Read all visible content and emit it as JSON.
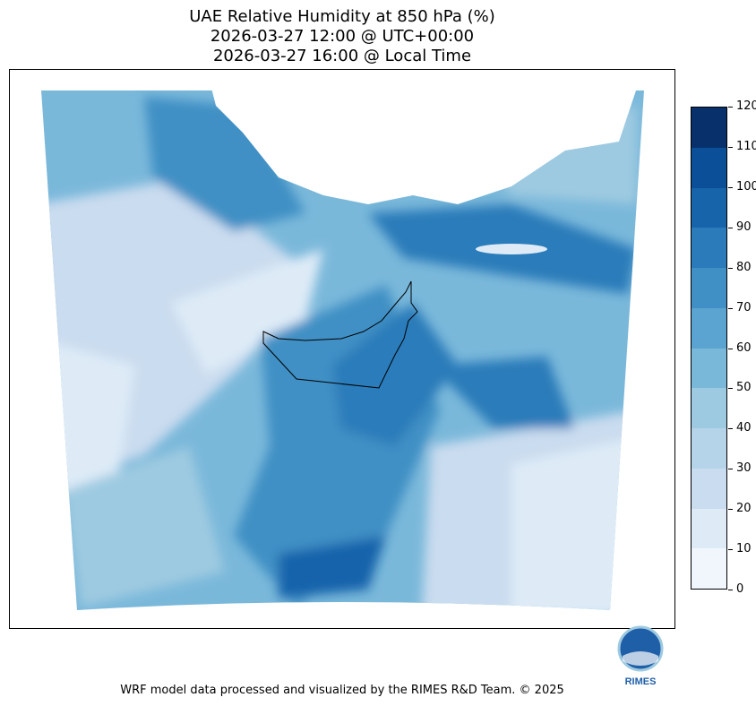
{
  "title": {
    "line1": "UAE Relative Humidity at 850 hPa (%)",
    "line2": "2026-03-27 12:00 @ UTC+00:00",
    "line3": "2026-03-27 16:00 @ Local Time"
  },
  "colorbar": {
    "ticks": [
      "0",
      "10",
      "20",
      "30",
      "40",
      "50",
      "60",
      "70",
      "80",
      "90",
      "100",
      "110",
      "120"
    ],
    "colors": [
      "#f0f6fc",
      "#deebf7",
      "#cadcef",
      "#b5d4e9",
      "#9ecae1",
      "#7ab8da",
      "#5ba3d0",
      "#4090c5",
      "#2b7bba",
      "#1764ab",
      "#0a4f97",
      "#08306b"
    ]
  },
  "logo": {
    "text": "RIMES"
  },
  "footer": "WRF model data processed and visualized by the RIMES R&D Team. © 2025"
}
